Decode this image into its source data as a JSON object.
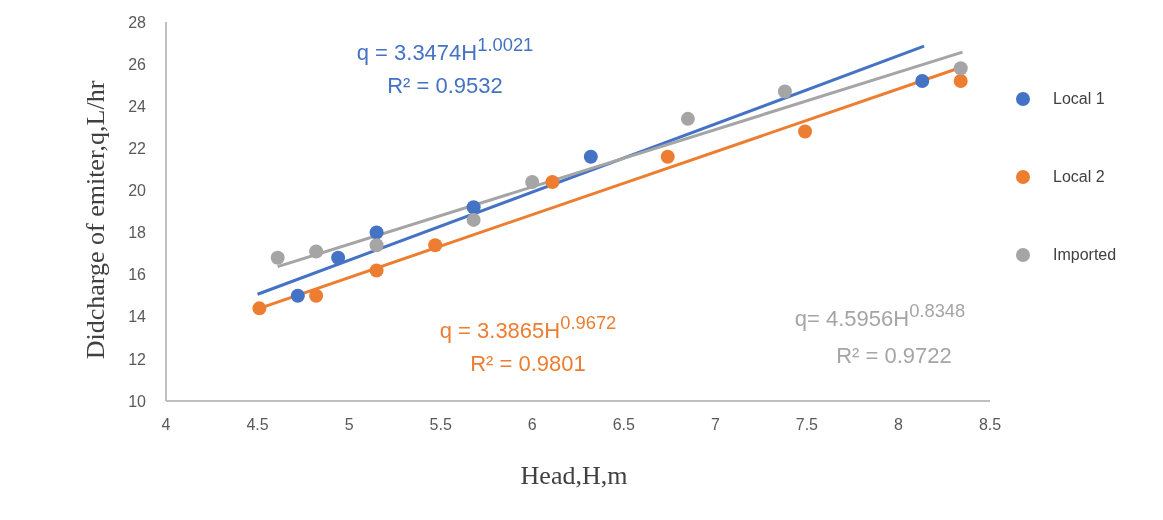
{
  "chart_data": {
    "type": "scatter",
    "xlabel": "Head,H,m",
    "ylabel": "Didcharge of emiter,q,L/hr",
    "xlim": [
      4,
      8.5
    ],
    "xticks": [
      4,
      4.5,
      5,
      5.5,
      6,
      6.5,
      7,
      7.5,
      8,
      8.5
    ],
    "ylim": [
      10,
      28
    ],
    "yticks": [
      10,
      12,
      14,
      16,
      18,
      20,
      22,
      24,
      26,
      28
    ],
    "grid": false,
    "legend": "right",
    "line_style": "solid",
    "series": [
      {
        "name": "Local 1",
        "color": "#4472c4",
        "marker": "circle",
        "x": [
          4.72,
          4.94,
          5.15,
          5.68,
          6.32,
          8.13
        ],
        "values": [
          15.0,
          16.8,
          18.0,
          19.2,
          21.6,
          25.2
        ]
      },
      {
        "name": "Local 2",
        "color": "#ed7d31",
        "marker": "circle",
        "x": [
          4.51,
          4.82,
          5.15,
          5.47,
          6.11,
          6.74,
          7.49,
          8.34
        ],
        "values": [
          14.4,
          15.0,
          16.2,
          17.4,
          20.4,
          21.6,
          22.8,
          25.2
        ]
      },
      {
        "name": "Imported",
        "color": "#a5a5a5",
        "marker": "circle",
        "x": [
          4.61,
          4.82,
          5.15,
          5.68,
          6.0,
          6.85,
          7.38,
          8.34
        ],
        "values": [
          16.8,
          17.1,
          17.4,
          18.6,
          20.4,
          23.4,
          24.7,
          25.8
        ]
      },
      {
        "type": "line",
        "marker": "none",
        "color": "#4472c4",
        "x": [
          4.5,
          8.14
        ],
        "values": [
          15.07,
          26.85
        ]
      },
      {
        "type": "line",
        "marker": "none",
        "color": "#ed7d31",
        "x": [
          4.51,
          8.34
        ],
        "values": [
          14.4,
          25.84
        ]
      },
      {
        "type": "line",
        "marker": "none",
        "color": "#a5a5a5",
        "x": [
          4.61,
          8.35
        ],
        "values": [
          16.38,
          26.57
        ]
      }
    ],
    "annotations": [
      "q = 3.3474H$^{1.0021}$",
      "R² = 0.9532",
      "q = 3.3865H$^{0.9672}$",
      "R² = 0.9801",
      "q= 4.5956H$^{0.8348}$",
      "R² = 0.9722"
    ]
  }
}
